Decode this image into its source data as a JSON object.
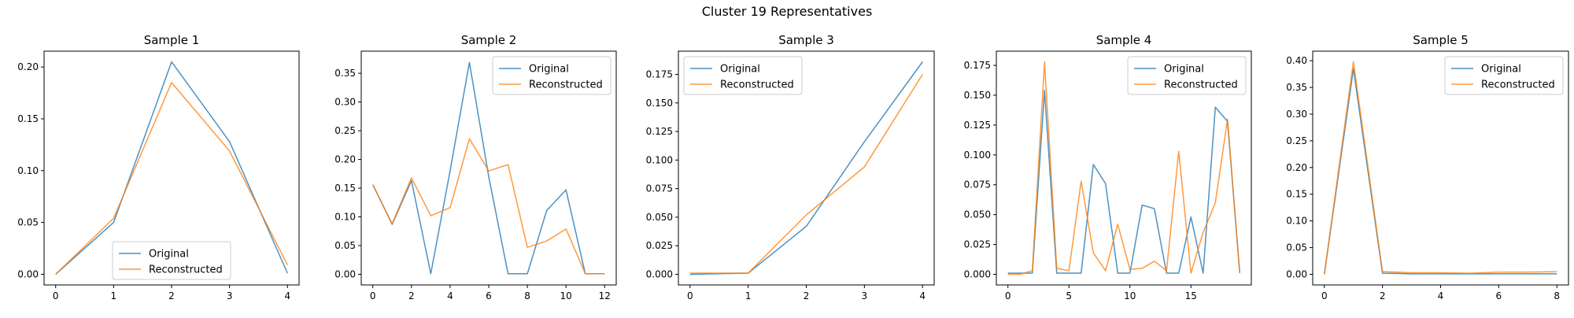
{
  "figure": {
    "title": "Cluster 19 Representatives"
  },
  "colors": {
    "original": "#1f77b4",
    "reconstructed": "#ff7f0e"
  },
  "chart_data": [
    {
      "type": "line",
      "title": "Sample 1",
      "x": [
        0,
        1,
        2,
        3,
        4
      ],
      "xticks": [
        0,
        1,
        2,
        3,
        4
      ],
      "xlim": [
        -0.2,
        4.2
      ],
      "yticks": [
        0.0,
        0.05,
        0.1,
        0.15,
        0.2
      ],
      "ytick_labels": [
        "0.00",
        "0.05",
        "0.10",
        "0.15",
        "0.20"
      ],
      "ylim": [
        -0.0103,
        0.2153
      ],
      "legend": "lower center",
      "series": [
        {
          "name": "Original",
          "values": [
            0.0,
            0.05,
            0.205,
            0.128,
            0.001
          ]
        },
        {
          "name": "Reconstructed",
          "values": [
            0.0,
            0.054,
            0.185,
            0.119,
            0.009
          ]
        }
      ]
    },
    {
      "type": "line",
      "title": "Sample 2",
      "x": [
        0,
        1,
        2,
        3,
        4,
        5,
        6,
        7,
        8,
        9,
        10,
        11,
        12
      ],
      "xticks": [
        0,
        2,
        4,
        6,
        8,
        10,
        12
      ],
      "xlim": [
        -0.6,
        12.6
      ],
      "yticks": [
        0.0,
        0.05,
        0.1,
        0.15,
        0.2,
        0.25,
        0.3,
        0.35
      ],
      "ytick_labels": [
        "0.00",
        "0.05",
        "0.10",
        "0.15",
        "0.20",
        "0.25",
        "0.30",
        "0.35"
      ],
      "ylim": [
        -0.0185,
        0.3885
      ],
      "legend": "upper right",
      "series": [
        {
          "name": "Original",
          "values": [
            0.156,
            0.087,
            0.163,
            0.001,
            0.18,
            0.369,
            0.17,
            0.001,
            0.001,
            0.111,
            0.147,
            0.001,
            0.001
          ]
        },
        {
          "name": "Reconstructed",
          "values": [
            0.156,
            0.088,
            0.168,
            0.102,
            0.116,
            0.236,
            0.18,
            0.191,
            0.047,
            0.058,
            0.079,
            0.001,
            0.001
          ]
        }
      ]
    },
    {
      "type": "line",
      "title": "Sample 3",
      "x": [
        0,
        1,
        2,
        3,
        4
      ],
      "xticks": [
        0,
        1,
        2,
        3,
        4
      ],
      "xlim": [
        -0.2,
        4.2
      ],
      "yticks": [
        0.0,
        0.025,
        0.05,
        0.075,
        0.1,
        0.125,
        0.15,
        0.175
      ],
      "ytick_labels": [
        "0.000",
        "0.025",
        "0.050",
        "0.075",
        "0.100",
        "0.125",
        "0.150",
        "0.175"
      ],
      "ylim": [
        -0.0093,
        0.1953
      ],
      "legend": "upper left",
      "series": [
        {
          "name": "Original",
          "values": [
            0.0,
            0.001,
            0.042,
            0.116,
            0.186
          ]
        },
        {
          "name": "Reconstructed",
          "values": [
            0.001,
            0.001,
            0.052,
            0.094,
            0.175
          ]
        }
      ]
    },
    {
      "type": "line",
      "title": "Sample 4",
      "x": [
        0,
        1,
        2,
        3,
        4,
        5,
        6,
        7,
        8,
        9,
        10,
        11,
        12,
        13,
        14,
        15,
        16,
        17,
        18,
        19
      ],
      "xticks": [
        0,
        5,
        10,
        15
      ],
      "xlim": [
        -0.95,
        19.95
      ],
      "yticks": [
        0.0,
        0.025,
        0.05,
        0.075,
        0.1,
        0.125,
        0.15,
        0.175
      ],
      "ytick_labels": [
        "0.000",
        "0.025",
        "0.050",
        "0.075",
        "0.100",
        "0.125",
        "0.150",
        "0.175"
      ],
      "ylim": [
        -0.0089,
        0.1869
      ],
      "legend": "upper right",
      "series": [
        {
          "name": "Original",
          "values": [
            0.001,
            0.001,
            0.001,
            0.154,
            0.001,
            0.001,
            0.001,
            0.092,
            0.076,
            0.001,
            0.001,
            0.058,
            0.055,
            0.001,
            0.001,
            0.048,
            0.001,
            0.14,
            0.128,
            0.001
          ]
        },
        {
          "name": "Reconstructed",
          "values": [
            0.0,
            0.0,
            0.003,
            0.178,
            0.005,
            0.003,
            0.078,
            0.018,
            0.003,
            0.042,
            0.004,
            0.005,
            0.011,
            0.003,
            0.103,
            0.001,
            0.035,
            0.06,
            0.13,
            0.001
          ]
        }
      ]
    },
    {
      "type": "line",
      "title": "Sample 5",
      "x": [
        0,
        1,
        2,
        3,
        4,
        5,
        6,
        7,
        8
      ],
      "xticks": [
        0,
        2,
        4,
        6,
        8
      ],
      "xlim": [
        -0.4,
        8.4
      ],
      "yticks": [
        0.0,
        0.05,
        0.1,
        0.15,
        0.2,
        0.25,
        0.3,
        0.35,
        0.4
      ],
      "ytick_labels": [
        "0.00",
        "0.05",
        "0.10",
        "0.15",
        "0.20",
        "0.25",
        "0.30",
        "0.35",
        "0.40"
      ],
      "ylim": [
        -0.0199,
        0.4179
      ],
      "legend": "upper right",
      "series": [
        {
          "name": "Original",
          "values": [
            0.0,
            0.385,
            0.002,
            0.001,
            0.001,
            0.001,
            0.001,
            0.001,
            0.001
          ]
        },
        {
          "name": "Reconstructed",
          "values": [
            0.0,
            0.398,
            0.005,
            0.003,
            0.003,
            0.002,
            0.004,
            0.004,
            0.005
          ]
        }
      ]
    }
  ]
}
